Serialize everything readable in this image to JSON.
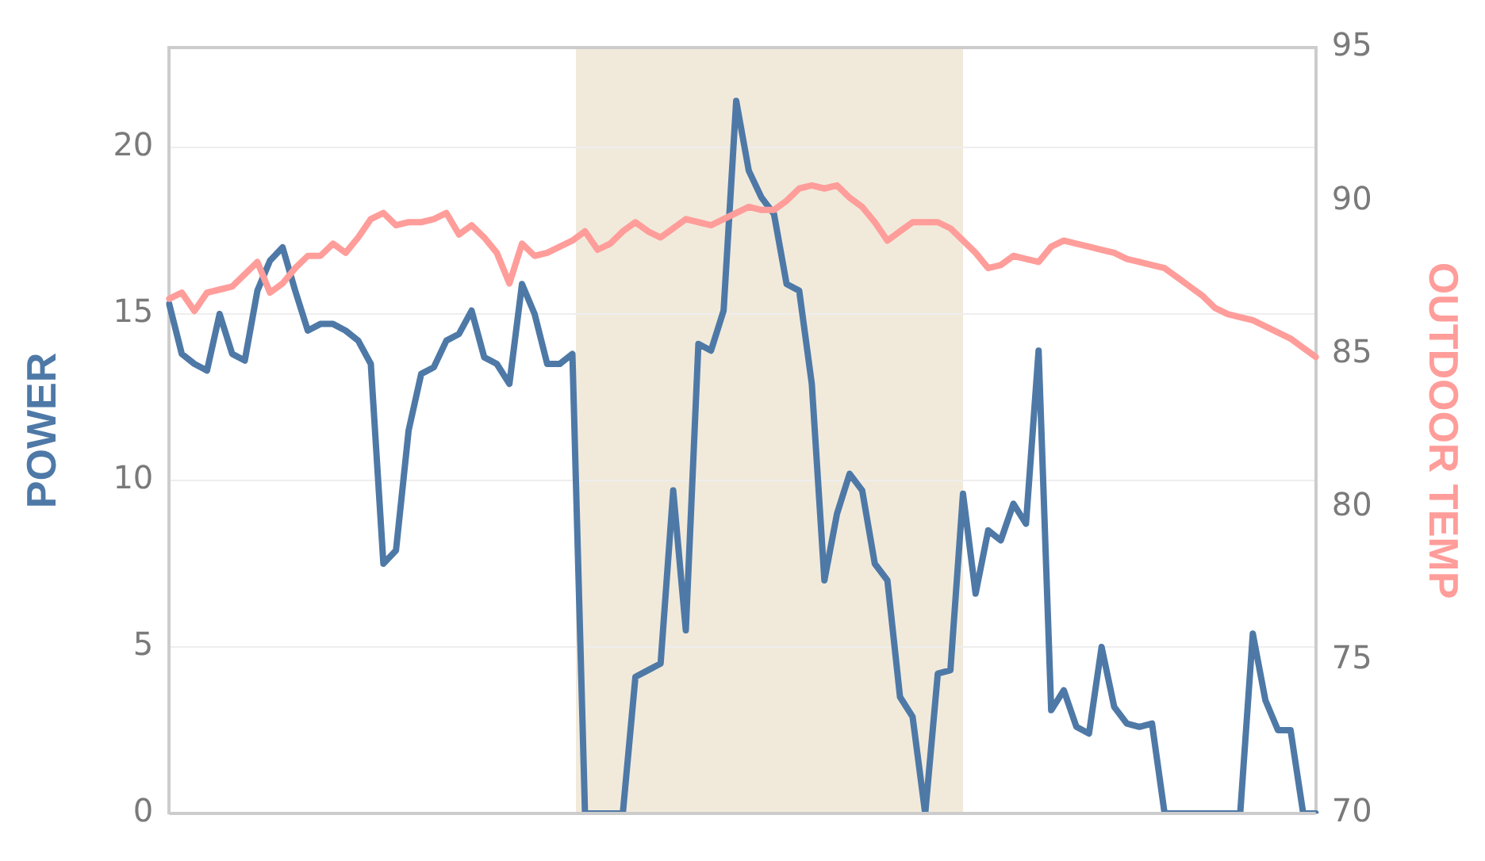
{
  "chart_data": {
    "type": "line",
    "ylabel": "POWER",
    "y2label": "OUTDOOR TEMP",
    "ylim": [
      0,
      23
    ],
    "yticks": [
      0,
      5,
      10,
      15,
      20
    ],
    "y2lim": [
      70,
      95
    ],
    "y2ticks": [
      70,
      75,
      80,
      85,
      90,
      95
    ],
    "tick_labels": "y",
    "grid": "y",
    "legend": false,
    "marker": "none",
    "line_style": "solid",
    "categories": [
      null,
      null,
      null,
      null,
      null,
      null,
      null,
      null,
      null,
      null,
      null,
      null,
      null,
      null,
      null,
      null,
      null,
      null,
      null,
      null,
      null,
      null,
      null,
      null,
      null,
      null,
      null,
      null,
      null,
      null,
      null,
      null,
      null,
      null,
      null,
      null,
      null,
      null,
      null,
      null,
      null,
      null,
      null,
      null,
      null,
      null,
      null,
      null,
      null,
      null,
      null,
      null,
      null,
      null,
      null,
      null,
      null,
      null,
      null,
      null,
      null,
      null,
      null,
      null,
      null,
      null,
      null,
      null,
      null,
      null,
      null,
      null,
      null,
      null,
      null,
      null,
      null,
      null,
      null,
      null,
      null,
      null,
      null,
      null,
      null,
      null,
      null,
      null,
      null,
      null,
      null,
      null
    ],
    "series": [
      {
        "color": "#4e79a7",
        "values": [
          15.3,
          13.8,
          13.5,
          13.3,
          15.0,
          13.8,
          13.6,
          15.7,
          16.6,
          17.0,
          15.7,
          14.5,
          14.7,
          14.7,
          14.5,
          14.2,
          13.5,
          7.5,
          7.9,
          11.5,
          13.2,
          13.4,
          14.2,
          14.4,
          15.1,
          13.7,
          13.5,
          12.9,
          15.9,
          15.0,
          13.5,
          13.5,
          13.8,
          0,
          0,
          0,
          0,
          4.1,
          4.3,
          4.5,
          9.7,
          5.5,
          14.1,
          13.9,
          15.1,
          21.4,
          19.3,
          18.5,
          18.0,
          15.9,
          15.7,
          12.9,
          7.0,
          9.0,
          10.2,
          9.7,
          7.5,
          7.0,
          3.5,
          2.9,
          0,
          4.2,
          4.3,
          9.6,
          6.6,
          8.5,
          8.2,
          9.3,
          8.7,
          13.9,
          3.1,
          3.7,
          2.6,
          2.4,
          5.0,
          3.2,
          2.7,
          2.6,
          2.7,
          0,
          0,
          0,
          0,
          0,
          0,
          0,
          5.4,
          3.4,
          2.5,
          2.5,
          0,
          0
        ]
      },
      {
        "color": "#ff9d9a",
        "axis": "y2",
        "values": [
          86.8,
          87.0,
          86.4,
          87.0,
          87.1,
          87.2,
          87.6,
          88.0,
          87.0,
          87.3,
          87.8,
          88.2,
          88.2,
          88.6,
          88.3,
          88.8,
          89.4,
          89.6,
          89.2,
          89.3,
          89.3,
          89.4,
          89.6,
          88.9,
          89.2,
          88.8,
          88.3,
          87.3,
          88.6,
          88.2,
          88.3,
          88.5,
          88.7,
          89.0,
          88.4,
          88.6,
          89.0,
          89.3,
          89.0,
          88.8,
          89.1,
          89.4,
          89.3,
          89.2,
          89.4,
          89.6,
          89.8,
          89.7,
          89.7,
          90.0,
          90.4,
          90.5,
          90.4,
          90.5,
          90.1,
          89.8,
          89.3,
          88.7,
          89.0,
          89.3,
          89.3,
          89.3,
          89.1,
          88.7,
          88.3,
          87.8,
          87.9,
          88.2,
          88.1,
          88.0,
          88.5,
          88.7,
          88.6,
          88.5,
          88.4,
          88.3,
          88.1,
          88.0,
          87.9,
          87.8,
          87.5,
          87.2,
          86.9,
          86.5,
          86.3,
          86.2,
          86.1,
          85.9,
          85.7,
          85.5,
          85.2,
          84.9
        ]
      }
    ]
  }
}
